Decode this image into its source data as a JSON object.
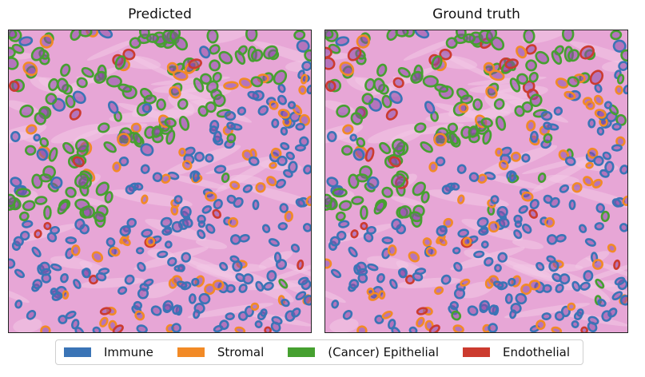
{
  "panels": [
    {
      "title": "Predicted"
    },
    {
      "title": "Ground truth"
    }
  ],
  "legend": [
    {
      "label": "Immune",
      "color": "#3a74b6"
    },
    {
      "label": "Stromal",
      "color": "#f28a26"
    },
    {
      "label": "(Cancer) Epithelial",
      "color": "#46a030"
    },
    {
      "label": "Endothelial",
      "color": "#cc3b2f"
    }
  ],
  "tissue_colors": {
    "background": "#e7a6d6",
    "stroma_light": "#f2c9e6",
    "nucleus": "#8a4aa8"
  }
}
